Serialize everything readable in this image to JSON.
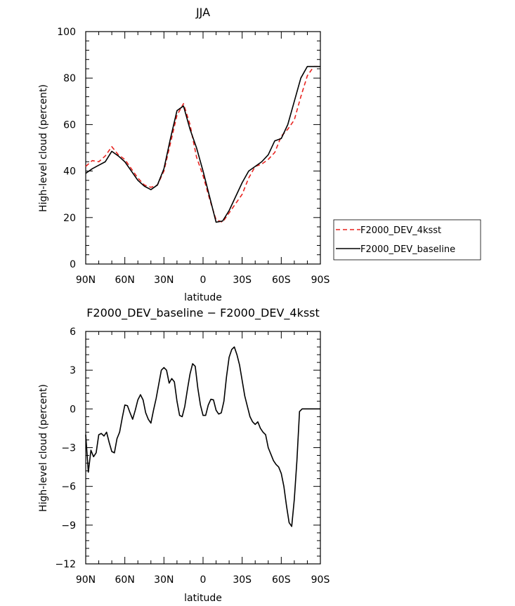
{
  "chart_data": [
    {
      "type": "line",
      "title": "JJA",
      "xlabel": "latitude",
      "ylabel": "High-level cloud (percent)",
      "ylim": [
        0,
        100
      ],
      "yticks": [
        0,
        20,
        40,
        60,
        80,
        100
      ],
      "xlim": [
        90,
        -90
      ],
      "xticks": [
        90,
        60,
        30,
        0,
        -30,
        -60,
        -90
      ],
      "xticklabels": [
        "90N",
        "60N",
        "30N",
        "0",
        "30S",
        "60S",
        "90S"
      ],
      "grid": false,
      "legend_position": "right",
      "x": [
        90,
        85,
        80,
        75,
        70,
        65,
        60,
        55,
        50,
        45,
        40,
        35,
        30,
        25,
        20,
        15,
        10,
        5,
        0,
        -5,
        -10,
        -15,
        -20,
        -25,
        -30,
        -35,
        -40,
        -45,
        -50,
        -55,
        -60,
        -65,
        -70,
        -75,
        -80,
        -85,
        -90
      ],
      "series": [
        {
          "name": "F2000_DEV_4ksst",
          "color": "#e8231f",
          "dash": "dashed",
          "values": [
            42,
            44.5,
            44,
            46.5,
            50.5,
            47,
            45,
            41,
            37,
            34,
            33,
            34,
            40,
            52,
            64,
            69,
            60,
            46,
            38,
            28,
            19,
            18,
            22,
            26,
            30,
            37,
            42,
            43,
            45,
            48,
            55,
            58,
            62,
            72,
            81,
            85,
            85
          ]
        },
        {
          "name": "F2000_DEV_baseline",
          "color": "#000000",
          "dash": "solid",
          "values": [
            39,
            41,
            42.5,
            44,
            48.5,
            46.5,
            44,
            40,
            36,
            33.5,
            32,
            34,
            41,
            54,
            66,
            68,
            58,
            50,
            40,
            29,
            18,
            18.5,
            23,
            29,
            35,
            40,
            42,
            44,
            47,
            53,
            54,
            60,
            70,
            80,
            85,
            85,
            85
          ]
        }
      ]
    },
    {
      "type": "line",
      "title": "F2000_DEV_baseline − F2000_DEV_4ksst",
      "xlabel": "latitude",
      "ylabel": "High-level cloud (percent)",
      "ylim": [
        -12,
        6
      ],
      "yticks": [
        -12,
        -9,
        -6,
        -3,
        0,
        3,
        6
      ],
      "xlim": [
        90,
        -90
      ],
      "xticks": [
        90,
        60,
        30,
        0,
        -30,
        -60,
        -90
      ],
      "xticklabels": [
        "90N",
        "60N",
        "30N",
        "0",
        "30S",
        "60S",
        "90S"
      ],
      "grid": false,
      "x": [
        90,
        88,
        86,
        84,
        82,
        80,
        78,
        76,
        74,
        72,
        70,
        68,
        66,
        64,
        62,
        60,
        58,
        56,
        54,
        52,
        50,
        48,
        46,
        44,
        42,
        40,
        38,
        36,
        34,
        32,
        30,
        28,
        26,
        24,
        22,
        20,
        18,
        16,
        14,
        12,
        10,
        8,
        6,
        4,
        2,
        0,
        -2,
        -4,
        -6,
        -8,
        -10,
        -12,
        -14,
        -16,
        -18,
        -20,
        -22,
        -24,
        -26,
        -28,
        -30,
        -32,
        -34,
        -36,
        -38,
        -40,
        -42,
        -44,
        -46,
        -48,
        -50,
        -52,
        -54,
        -56,
        -58,
        -60,
        -62,
        -64,
        -66,
        -68,
        -70,
        -72,
        -74,
        -76,
        -78,
        -80,
        -82,
        -84,
        -86,
        -88,
        -90
      ],
      "series": [
        {
          "name": "",
          "color": "#000000",
          "dash": "solid",
          "values": [
            -2,
            -4.9,
            -3.2,
            -3.7,
            -3.4,
            -2.0,
            -1.9,
            -2.1,
            -1.8,
            -2.6,
            -3.3,
            -3.4,
            -2.3,
            -1.8,
            -0.7,
            0.3,
            0.25,
            -0.3,
            -0.8,
            -0.1,
            0.7,
            1.1,
            0.7,
            -0.3,
            -0.8,
            -1.1,
            -0.1,
            0.8,
            1.9,
            3.0,
            3.2,
            3.0,
            2.0,
            2.35,
            2.1,
            0.6,
            -0.5,
            -0.6,
            0.2,
            1.5,
            2.7,
            3.5,
            3.3,
            1.6,
            0.3,
            -0.5,
            -0.5,
            0.3,
            0.75,
            0.7,
            -0.1,
            -0.4,
            -0.3,
            0.6,
            2.5,
            4.0,
            4.6,
            4.8,
            4.2,
            3.4,
            2.2,
            1.0,
            0.2,
            -0.6,
            -1.0,
            -1.2,
            -1.0,
            -1.5,
            -1.8,
            -2.0,
            -3.0,
            -3.5,
            -4.0,
            -4.3,
            -4.5,
            -5.0,
            -6.0,
            -7.5,
            -8.8,
            -9.1,
            -7.0,
            -4.0,
            -0.2,
            0,
            0,
            0,
            0,
            0,
            0,
            0,
            0
          ]
        }
      ]
    }
  ]
}
